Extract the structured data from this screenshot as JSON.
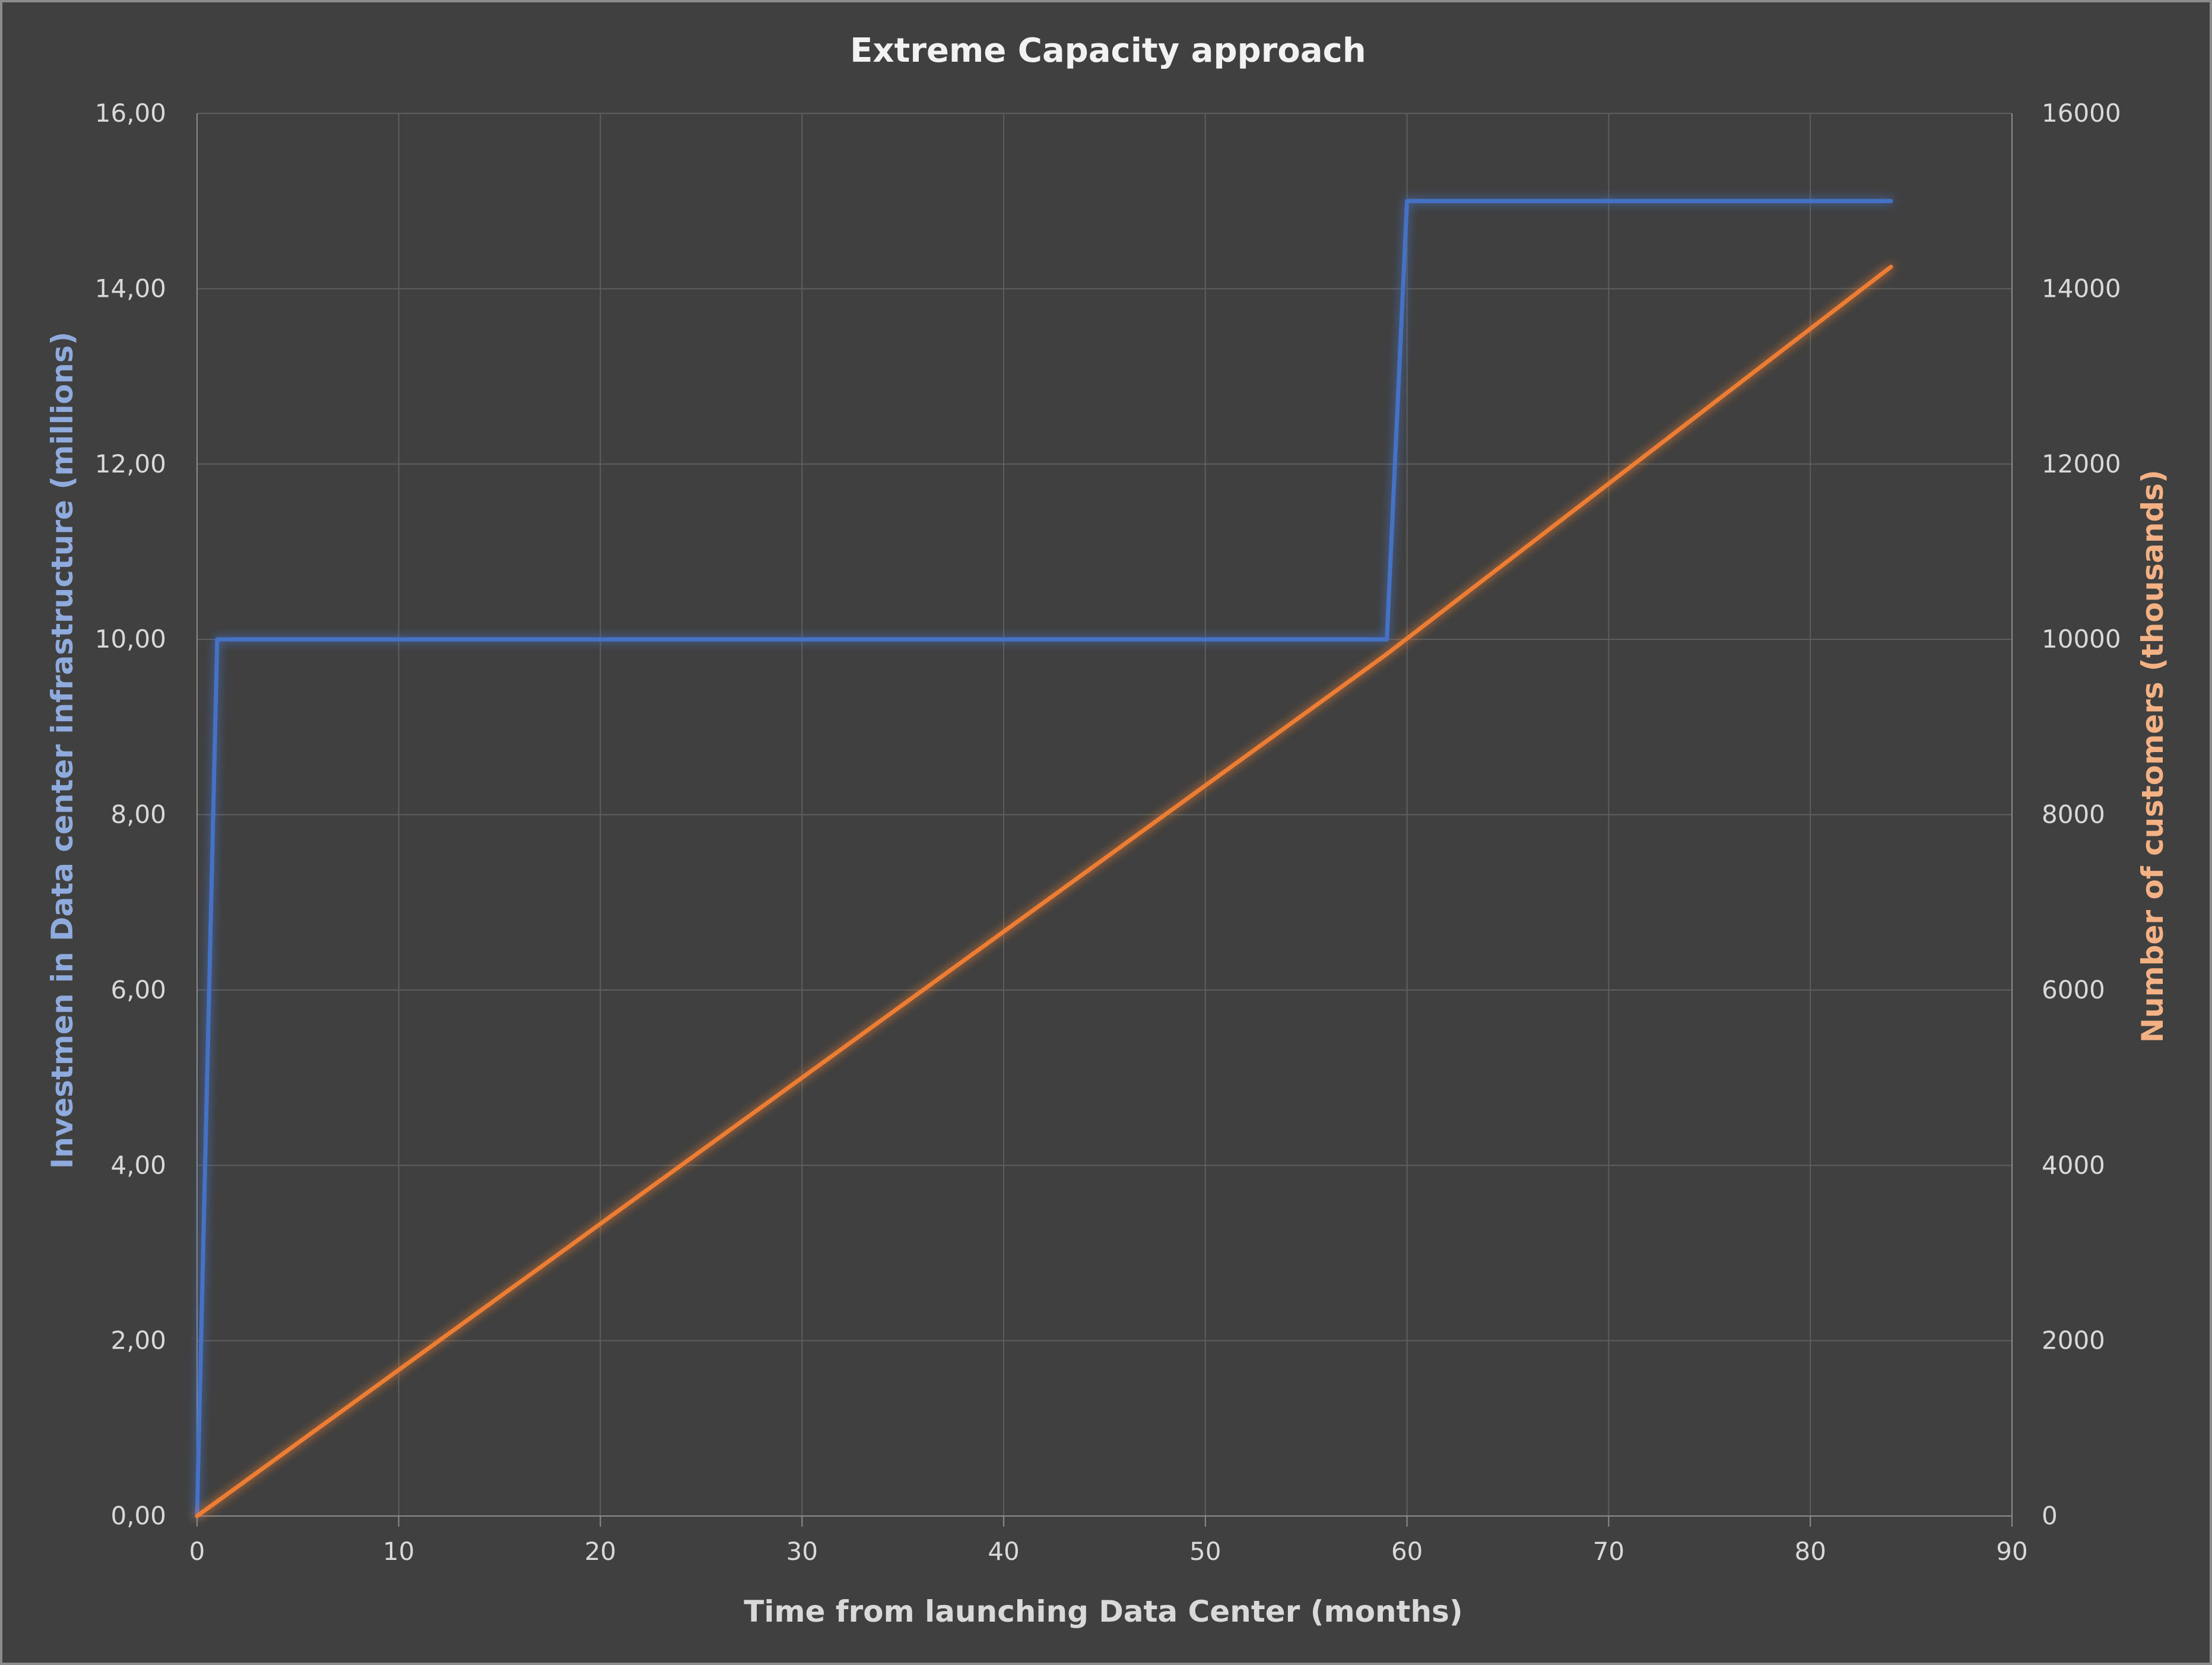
{
  "chart_data": {
    "type": "line",
    "title": "Extreme Capacity approach",
    "xlabel": "Time from launching Data Center (months)",
    "ylabel_left": "Investmen in Data center infrastructure (millions)",
    "ylabel_right": "Number of customers (thousands)",
    "xlim": [
      0,
      90
    ],
    "ylim_left": [
      0,
      16
    ],
    "ylim_right": [
      0,
      16000
    ],
    "x_ticks": [
      "0",
      "10",
      "20",
      "30",
      "40",
      "50",
      "60",
      "70",
      "80",
      "90"
    ],
    "y_left_ticks": [
      "0,00",
      "2,00",
      "4,00",
      "6,00",
      "8,00",
      "10,00",
      "12,00",
      "14,00",
      "16,00"
    ],
    "y_right_ticks": [
      "0",
      "2000",
      "4000",
      "6000",
      "8000",
      "10000",
      "12000",
      "14000",
      "16000"
    ],
    "grid": true,
    "colors": {
      "background": "#404040",
      "investment": "#4472c4",
      "customers": "#ed7d31",
      "left_axis_title": "#8faadc",
      "right_axis_title": "#f4b183"
    },
    "series": [
      {
        "axis": "left",
        "color": "#4472c4",
        "points": [
          [
            0,
            0
          ],
          [
            1,
            10
          ],
          [
            59,
            10
          ],
          [
            60,
            15
          ],
          [
            84,
            15
          ]
        ]
      },
      {
        "axis": "right",
        "color": "#ed7d31",
        "points": [
          [
            0,
            0
          ],
          [
            59,
            9833
          ],
          [
            84,
            14250
          ]
        ]
      }
    ]
  }
}
